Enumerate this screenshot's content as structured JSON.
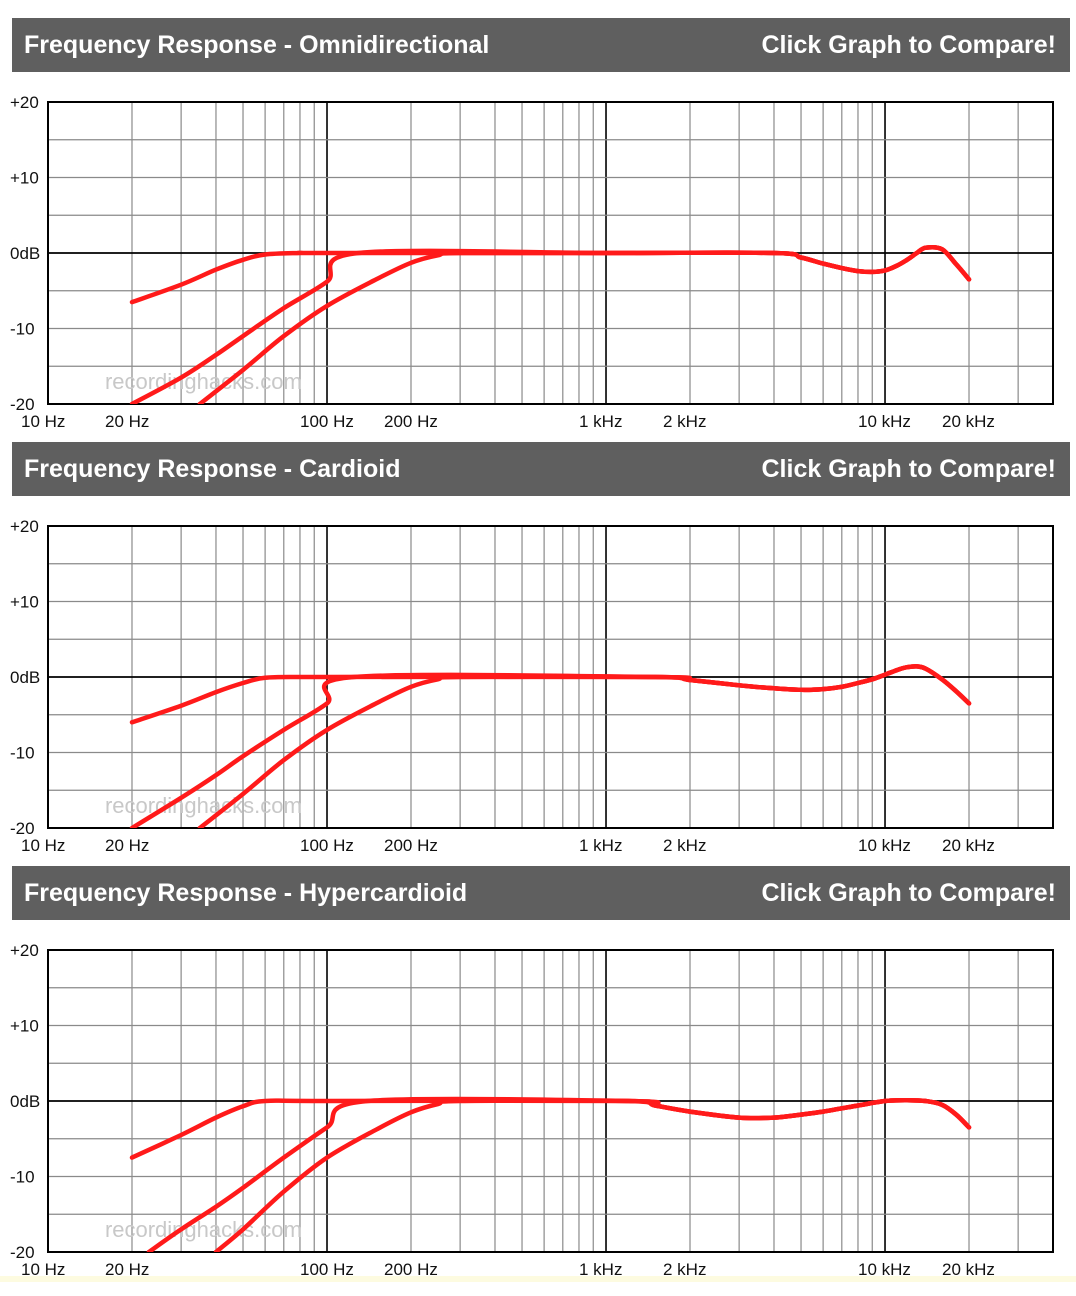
{
  "panels": [
    {
      "title": "Frequency Response - Omnidirectional",
      "compare_label": "Click Graph to Compare!"
    },
    {
      "title": "Frequency Response - Cardioid",
      "compare_label": "Click Graph to Compare!"
    },
    {
      "title": "Frequency Response - Hypercardioid",
      "compare_label": "Click Graph to Compare!"
    }
  ],
  "watermark": "recordinghacks.com",
  "colors": {
    "header_bg": "#5f5f5f",
    "curve": "#ff1a1a",
    "grid": "#8a8a8a",
    "axis": "#000000"
  },
  "chart_data": [
    {
      "type": "line",
      "title": "Frequency Response - Omnidirectional",
      "x_scale": "log",
      "xlim": [
        10,
        40000
      ],
      "ylim": [
        -20,
        20
      ],
      "x_tick_labels": [
        "10 Hz",
        "20 Hz",
        "100 Hz",
        "200 Hz",
        "1 kHz",
        "2 kHz",
        "10 kHz",
        "20 kHz"
      ],
      "x_tick_values": [
        10,
        20,
        100,
        200,
        1000,
        2000,
        10000,
        20000
      ],
      "y_tick_labels": [
        "+20",
        "+10",
        "0dB",
        "-10",
        "-20"
      ],
      "y_tick_values": [
        20,
        10,
        0,
        -10,
        -20
      ],
      "grid": true,
      "series": [
        {
          "x": [
            20,
            30,
            40,
            50,
            60,
            80,
            100,
            1000,
            4000,
            5000,
            6000,
            7000,
            8000,
            9000,
            10000,
            11000,
            12000,
            13000,
            14000,
            16000,
            18000,
            20000
          ],
          "y": [
            -6.5,
            -4.2,
            -2.2,
            -0.9,
            -0.2,
            0,
            0,
            0,
            0,
            -0.6,
            -1.4,
            -2,
            -2.4,
            -2.5,
            -2.3,
            -1.7,
            -0.9,
            0,
            0.7,
            0.5,
            -1.5,
            -3.5
          ]
        },
        {
          "x": [
            20,
            30,
            40,
            50,
            70,
            100,
            130,
            1000,
            4000,
            5000,
            6000,
            7000,
            8000,
            9000,
            10000,
            11000,
            12000,
            13000,
            14000,
            16000,
            18000,
            20000
          ],
          "y": [
            -20,
            -16.5,
            -13.5,
            -11,
            -7.3,
            -3.8,
            0,
            0,
            0,
            -0.6,
            -1.4,
            -2,
            -2.4,
            -2.5,
            -2.3,
            -1.7,
            -0.9,
            0,
            0.7,
            0.5,
            -1.5,
            -3.5
          ]
        },
        {
          "x": [
            35,
            50,
            70,
            100,
            150,
            200,
            250,
            300,
            1000,
            4000,
            5000,
            6000,
            7000,
            8000,
            9000,
            10000,
            11000,
            12000,
            13000,
            14000,
            16000,
            18000,
            20000
          ],
          "y": [
            -20,
            -15.5,
            -11,
            -7,
            -3.5,
            -1.3,
            -0.3,
            0,
            0,
            0,
            -0.6,
            -1.4,
            -2,
            -2.4,
            -2.5,
            -2.3,
            -1.7,
            -0.9,
            0,
            0.7,
            0.5,
            -1.5,
            -3.5
          ]
        }
      ]
    },
    {
      "type": "line",
      "title": "Frequency Response - Cardioid",
      "x_scale": "log",
      "xlim": [
        10,
        40000
      ],
      "ylim": [
        -20,
        20
      ],
      "x_tick_labels": [
        "10 Hz",
        "20 Hz",
        "100 Hz",
        "200 Hz",
        "1 kHz",
        "2 kHz",
        "10 kHz",
        "20 kHz"
      ],
      "x_tick_values": [
        10,
        20,
        100,
        200,
        1000,
        2000,
        10000,
        20000
      ],
      "y_tick_labels": [
        "+20",
        "+10",
        "0dB",
        "-10",
        "-20"
      ],
      "y_tick_values": [
        20,
        10,
        0,
        -10,
        -20
      ],
      "grid": true,
      "series": [
        {
          "x": [
            20,
            30,
            40,
            50,
            60,
            80,
            100,
            1500,
            2000,
            3000,
            4000,
            5000,
            6000,
            7000,
            8000,
            9000,
            10000,
            11000,
            12000,
            13000,
            14000,
            16000,
            18000,
            20000
          ],
          "y": [
            -6,
            -3.8,
            -2,
            -0.8,
            -0.1,
            0,
            0,
            0,
            -0.4,
            -1.1,
            -1.5,
            -1.7,
            -1.6,
            -1.3,
            -0.8,
            -0.3,
            0.3,
            0.9,
            1.3,
            1.4,
            1.1,
            -0.3,
            -1.9,
            -3.5
          ]
        },
        {
          "x": [
            20,
            30,
            40,
            50,
            70,
            100,
            125,
            1500,
            2000,
            3000,
            4000,
            5000,
            6000,
            7000,
            8000,
            9000,
            10000,
            11000,
            12000,
            13000,
            14000,
            16000,
            18000,
            20000
          ],
          "y": [
            -20,
            -16,
            -13,
            -10.5,
            -7,
            -3.5,
            0,
            0,
            -0.4,
            -1.1,
            -1.5,
            -1.7,
            -1.6,
            -1.3,
            -0.8,
            -0.3,
            0.3,
            0.9,
            1.3,
            1.4,
            1.1,
            -0.3,
            -1.9,
            -3.5
          ]
        },
        {
          "x": [
            35,
            50,
            70,
            100,
            150,
            200,
            250,
            300,
            1500,
            2000,
            3000,
            4000,
            5000,
            6000,
            7000,
            8000,
            9000,
            10000,
            11000,
            12000,
            13000,
            14000,
            16000,
            18000,
            20000
          ],
          "y": [
            -20,
            -15.5,
            -11,
            -7,
            -3.5,
            -1.3,
            -0.3,
            0,
            0,
            -0.4,
            -1.1,
            -1.5,
            -1.7,
            -1.6,
            -1.3,
            -0.8,
            -0.3,
            0.3,
            0.9,
            1.3,
            1.4,
            1.1,
            -0.3,
            -1.9,
            -3.5
          ]
        }
      ]
    },
    {
      "type": "line",
      "title": "Frequency Response - Hypercardioid",
      "x_scale": "log",
      "xlim": [
        10,
        40000
      ],
      "ylim": [
        -20,
        20
      ],
      "x_tick_labels": [
        "10 Hz",
        "20 Hz",
        "100 Hz",
        "200 Hz",
        "1 kHz",
        "2 kHz",
        "10 kHz",
        "20 kHz"
      ],
      "x_tick_values": [
        10,
        20,
        100,
        200,
        1000,
        2000,
        10000,
        20000
      ],
      "y_tick_labels": [
        "+20",
        "+10",
        "0dB",
        "-10",
        "-20"
      ],
      "y_tick_values": [
        20,
        10,
        0,
        -10,
        -20
      ],
      "grid": true,
      "series": [
        {
          "x": [
            20,
            30,
            40,
            50,
            60,
            100,
            1200,
            1500,
            2000,
            3000,
            4000,
            5000,
            6000,
            8000,
            10000,
            12000,
            14000,
            16000,
            18000,
            20000
          ],
          "y": [
            -7.5,
            -4.5,
            -2.2,
            -0.7,
            0,
            0,
            0,
            -0.6,
            -1.4,
            -2.2,
            -2.2,
            -1.8,
            -1.4,
            -0.6,
            0,
            0.1,
            0,
            -0.5,
            -1.8,
            -3.5
          ]
        },
        {
          "x": [
            23,
            30,
            40,
            50,
            70,
            100,
            140,
            1200,
            1500,
            2000,
            3000,
            4000,
            5000,
            6000,
            8000,
            10000,
            12000,
            14000,
            16000,
            18000,
            20000
          ],
          "y": [
            -20,
            -17,
            -14,
            -11.5,
            -7.5,
            -3.5,
            0,
            0,
            -0.6,
            -1.4,
            -2.2,
            -2.2,
            -1.8,
            -1.4,
            -0.6,
            0,
            0.1,
            0,
            -0.5,
            -1.8,
            -3.5
          ]
        },
        {
          "x": [
            40,
            50,
            70,
            100,
            150,
            200,
            250,
            300,
            1200,
            1500,
            2000,
            3000,
            4000,
            5000,
            6000,
            8000,
            10000,
            12000,
            14000,
            16000,
            18000,
            20000
          ],
          "y": [
            -20,
            -17,
            -12,
            -7.5,
            -3.8,
            -1.5,
            -0.4,
            0,
            0,
            -0.6,
            -1.4,
            -2.2,
            -2.2,
            -1.8,
            -1.4,
            -0.6,
            0,
            0.1,
            0,
            -0.5,
            -1.8,
            -3.5
          ]
        }
      ]
    }
  ]
}
